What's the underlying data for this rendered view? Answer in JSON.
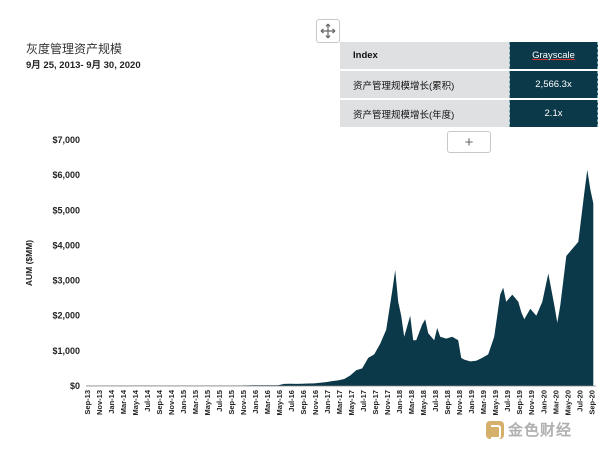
{
  "chart_data": {
    "type": "area",
    "title": "灰度管理资产规模",
    "subtitle": "9月 25, 2013- 9月 30, 2020",
    "ylabel": "AUM ($MM)",
    "xlabel": "",
    "ylim": [
      0,
      7000
    ],
    "y_ticks": [
      "$0",
      "$1,000",
      "$2,000",
      "$3,000",
      "$4,000",
      "$5,000",
      "$6,000",
      "$7,000"
    ],
    "x_ticks": [
      "Sep-13",
      "Nov-13",
      "Jan-14",
      "Mar-14",
      "May-14",
      "Jul-14",
      "Sep-14",
      "Nov-14",
      "Jan-15",
      "Mar-15",
      "May-15",
      "Jul-15",
      "Sep-15",
      "Nov-15",
      "Jan-16",
      "Mar-16",
      "May-16",
      "Jul-16",
      "Sep-16",
      "Nov-16",
      "Jan-17",
      "Mar-17",
      "May-17",
      "Jul-17",
      "Sep-17",
      "Nov-17",
      "Jan-18",
      "Mar-18",
      "May-18",
      "Jul-18",
      "Sep-18",
      "Nov-18",
      "Jan-19",
      "Mar-19",
      "May-19",
      "Jul-19",
      "Sep-19",
      "Nov-19",
      "Jan-20",
      "Mar-20",
      "May-20",
      "Jul-20",
      "Sep-20"
    ],
    "color": "#0c3949",
    "points": [
      [
        "Sep-13",
        5
      ],
      [
        "Nov-13",
        8
      ],
      [
        "Jan-14",
        10
      ],
      [
        "Mar-14",
        12
      ],
      [
        "May-14",
        12
      ],
      [
        "Jul-14",
        14
      ],
      [
        "Sep-14",
        12
      ],
      [
        "Nov-14",
        12
      ],
      [
        "Jan-15",
        10
      ],
      [
        "Mar-15",
        10
      ],
      [
        "May-15",
        10
      ],
      [
        "Jul-15",
        12
      ],
      [
        "Sep-15",
        12
      ],
      [
        "Nov-15",
        15
      ],
      [
        "Jan-16",
        20
      ],
      [
        "Mar-16",
        20
      ],
      [
        "May-16",
        22
      ],
      [
        "Jun-16",
        60
      ],
      [
        "Jul-16",
        65
      ],
      [
        "Aug-16",
        60
      ],
      [
        "Sep-16",
        62
      ],
      [
        "Oct-16",
        70
      ],
      [
        "Nov-16",
        75
      ],
      [
        "Dec-16",
        90
      ],
      [
        "Jan-17",
        110
      ],
      [
        "Feb-17",
        140
      ],
      [
        "Mar-17",
        160
      ],
      [
        "Apr-17",
        200
      ],
      [
        "May-17",
        300
      ],
      [
        "Jun-17",
        450
      ],
      [
        "Jul-17",
        500
      ],
      [
        "Aug-17",
        800
      ],
      [
        "Sep-17",
        900
      ],
      [
        "Oct-17",
        1200
      ],
      [
        "Nov-17",
        1600
      ],
      [
        "Dec-17",
        2700
      ],
      [
        "Dec-17b",
        3300
      ],
      [
        "Jan-18",
        2400
      ],
      [
        "Jan-18b",
        2000
      ],
      [
        "Feb-18",
        1400
      ],
      [
        "Mar-18",
        2000
      ],
      [
        "Mar-18b",
        1300
      ],
      [
        "Apr-18",
        1300
      ],
      [
        "May-18",
        1750
      ],
      [
        "May-18b",
        1900
      ],
      [
        "Jun-18",
        1500
      ],
      [
        "Jul-18",
        1300
      ],
      [
        "Jul-18b",
        1650
      ],
      [
        "Aug-18",
        1400
      ],
      [
        "Sep-18",
        1350
      ],
      [
        "Oct-18",
        1400
      ],
      [
        "Nov-18",
        1300
      ],
      [
        "Nov-18b",
        800
      ],
      [
        "Dec-18",
        750
      ],
      [
        "Jan-19",
        700
      ],
      [
        "Feb-19",
        720
      ],
      [
        "Mar-19",
        800
      ],
      [
        "Apr-19",
        900
      ],
      [
        "May-19",
        1400
      ],
      [
        "May-19b",
        2000
      ],
      [
        "Jun-19",
        2600
      ],
      [
        "Jun-19b",
        2800
      ],
      [
        "Jul-19",
        2400
      ],
      [
        "Aug-19",
        2600
      ],
      [
        "Sep-19",
        2400
      ],
      [
        "Sep-19b",
        2100
      ],
      [
        "Oct-19",
        1900
      ],
      [
        "Nov-19",
        2200
      ],
      [
        "Dec-19",
        2000
      ],
      [
        "Jan-20",
        2400
      ],
      [
        "Feb-20",
        3200
      ],
      [
        "Mar-20",
        2300
      ],
      [
        "Mar-20b",
        1800
      ],
      [
        "Apr-20",
        2300
      ],
      [
        "May-20",
        3700
      ],
      [
        "Jun-20",
        3900
      ],
      [
        "Jul-20",
        4100
      ],
      [
        "Aug-20",
        5500
      ],
      [
        "Aug-20b",
        6150
      ],
      [
        "Sep-20",
        5600
      ],
      [
        "Sep-20b",
        5200
      ]
    ]
  },
  "table": {
    "header_label": "Index",
    "header_value": "Grayscale",
    "rows": [
      {
        "label": "资产管理规模增长(累积)",
        "value": "2,566.3x"
      },
      {
        "label": "资产管理规模增长(年度)",
        "value": "2.1x"
      }
    ]
  },
  "controls": {
    "add_symbol": "+",
    "move_icon": "move-icon"
  },
  "watermark": {
    "text": "金色财经"
  }
}
